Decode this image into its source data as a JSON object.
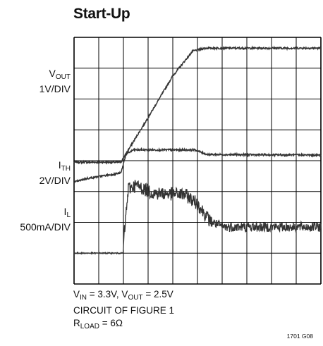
{
  "title": "Start-Up",
  "chart_data": {
    "type": "line",
    "grid": "10 x 8 divisions",
    "series": [
      {
        "name_main": "V",
        "name_sub": "OUT",
        "scale": "1V/DIV",
        "x": [
          0,
          1.9,
          2.2,
          3.0,
          4.0,
          4.8,
          5.3,
          10
        ],
        "y": [
          3.95,
          3.95,
          4.35,
          5.4,
          6.75,
          7.55,
          7.65,
          7.65
        ]
      },
      {
        "name_main": "I",
        "name_sub": "TH",
        "scale": "2V/DIV",
        "x": [
          0,
          0.5,
          1.9,
          2.1,
          2.4,
          4.9,
          5.4,
          10
        ],
        "y": [
          3.3,
          3.42,
          3.6,
          4.2,
          4.35,
          4.35,
          4.2,
          4.18
        ]
      },
      {
        "name_main": "I",
        "name_sub": "L",
        "scale": "500mA/DIV",
        "x": [
          0,
          1.99,
          2.02,
          2.2,
          2.5,
          3.2,
          4.5,
          5.0,
          5.5,
          6.0,
          10
        ],
        "y": [
          1.0,
          1.0,
          1.5,
          3.1,
          3.2,
          2.95,
          2.9,
          2.6,
          2.05,
          1.85,
          1.85
        ]
      }
    ]
  },
  "conditions": {
    "line1_a": "V",
    "line1_a_sub": "IN",
    "line1_b": " = 3.3V, V",
    "line1_b_sub": "OUT",
    "line1_c": " = 2.5V",
    "line2": "CIRCUIT OF FIGURE 1",
    "line3_a": "R",
    "line3_a_sub": "LOAD",
    "line3_b": " = 6Ω"
  },
  "figure_id": "1701 G08"
}
